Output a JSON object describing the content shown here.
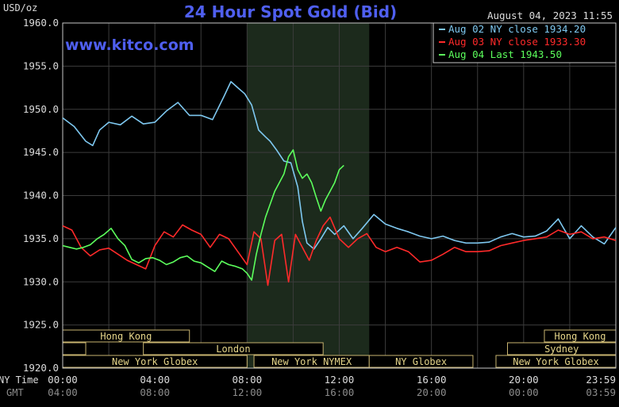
{
  "chart_data": {
    "type": "line",
    "title": "24 Hour Spot Gold (Bid)",
    "timestamp": "August 04, 2023 11:55",
    "watermark": "www.kitco.com",
    "ylabel": "USD/oz",
    "ylim": [
      1920,
      1960
    ],
    "y_ticks": [
      "1960.0",
      "1955.0",
      "1950.0",
      "1945.0",
      "1940.0",
      "1935.0",
      "1930.0",
      "1925.0",
      "1920.0"
    ],
    "x_row_labels": {
      "ny": "NY Time",
      "gmt": "GMT"
    },
    "x_ticks_ny": [
      "00:00",
      "04:00",
      "08:00",
      "12:00",
      "16:00",
      "20:00",
      "23:59"
    ],
    "x_ticks_gmt": [
      "04:00",
      "08:00",
      "12:00",
      "16:00",
      "20:00",
      "00:00",
      "03:59"
    ],
    "highlight_hours": [
      8,
      13.3
    ],
    "sessions": [
      {
        "label": "Hong Kong",
        "row": 0,
        "start": 0,
        "end": 5.5
      },
      {
        "label": "Hong Kong",
        "row": 0,
        "start": 20.9,
        "end": 24
      },
      {
        "label": "",
        "row": 1,
        "start": 0,
        "end": 1
      },
      {
        "label": "London",
        "row": 1,
        "start": 3.5,
        "end": 11.3
      },
      {
        "label": "Sydney",
        "row": 1,
        "start": 19.3,
        "end": 24
      },
      {
        "label": "New York Globex",
        "row": 2,
        "start": 0,
        "end": 8
      },
      {
        "label": "New York NYMEX",
        "row": 2,
        "start": 8.3,
        "end": 13.3
      },
      {
        "label": "NY Globex",
        "row": 2,
        "start": 13.3,
        "end": 17.8
      },
      {
        "label": "New York Globex",
        "row": 2,
        "start": 18.8,
        "end": 24
      }
    ],
    "series": [
      {
        "name": "Aug 02 NY close 1934.20",
        "color": "#7ec8f0",
        "x": [
          0,
          0.5,
          1,
          1.3,
          1.6,
          2,
          2.5,
          3,
          3.5,
          4,
          4.5,
          5,
          5.5,
          6,
          6.5,
          7,
          7.3,
          7.6,
          7.9,
          8.2,
          8.5,
          8.8,
          9,
          9.3,
          9.6,
          9.9,
          10.2,
          10.4,
          10.6,
          10.9,
          11.2,
          11.5,
          11.8,
          12.2,
          12.6,
          13,
          13.5,
          14,
          14.5,
          15,
          15.5,
          16,
          16.5,
          17,
          17.5,
          18,
          18.5,
          19,
          19.5,
          20,
          20.5,
          21,
          21.5,
          22,
          22.5,
          23,
          23.5,
          24
        ],
        "values": [
          1949.0,
          1948.0,
          1946.3,
          1945.8,
          1947.6,
          1948.5,
          1948.2,
          1949.2,
          1948.3,
          1948.5,
          1949.8,
          1950.8,
          1949.3,
          1949.3,
          1948.8,
          1951.5,
          1953.2,
          1952.5,
          1951.8,
          1950.5,
          1947.6,
          1946.8,
          1946.3,
          1945.2,
          1944.0,
          1943.8,
          1941.0,
          1937.0,
          1934.5,
          1933.8,
          1935.0,
          1936.3,
          1935.5,
          1936.5,
          1935.0,
          1936.2,
          1937.8,
          1936.7,
          1936.2,
          1935.8,
          1935.3,
          1935.0,
          1935.3,
          1934.8,
          1934.5,
          1934.5,
          1934.6,
          1935.2,
          1935.6,
          1935.2,
          1935.3,
          1935.9,
          1937.3,
          1935.0,
          1936.5,
          1935.2,
          1934.4,
          1936.3
        ]
      },
      {
        "name": "Aug 03 NY close 1933.30",
        "color": "#ff2a2a",
        "x": [
          0,
          0.4,
          0.8,
          1.2,
          1.6,
          2,
          2.4,
          2.8,
          3.2,
          3.6,
          4,
          4.4,
          4.8,
          5.2,
          5.6,
          6,
          6.4,
          6.8,
          7.2,
          7.6,
          8,
          8.3,
          8.6,
          8.9,
          9.2,
          9.5,
          9.8,
          10.1,
          10.4,
          10.7,
          11,
          11.3,
          11.6,
          12,
          12.4,
          12.8,
          13.2,
          13.6,
          14,
          14.5,
          15,
          15.5,
          16,
          16.5,
          17,
          17.5,
          18,
          18.5,
          19,
          19.5,
          20,
          20.5,
          21,
          21.5,
          22,
          22.5,
          23,
          23.5,
          24
        ],
        "values": [
          1936.5,
          1936.0,
          1934.0,
          1933.0,
          1933.7,
          1933.9,
          1933.2,
          1932.5,
          1932.0,
          1931.5,
          1934.2,
          1935.8,
          1935.2,
          1936.6,
          1936.0,
          1935.5,
          1934.0,
          1935.5,
          1935.0,
          1933.5,
          1932.0,
          1935.8,
          1935.0,
          1929.6,
          1934.8,
          1935.5,
          1930.0,
          1935.5,
          1934.0,
          1932.5,
          1934.8,
          1936.5,
          1937.5,
          1935.0,
          1934.0,
          1935.0,
          1935.6,
          1934.0,
          1933.5,
          1934.0,
          1933.5,
          1932.3,
          1932.5,
          1933.2,
          1934.0,
          1933.5,
          1933.5,
          1933.6,
          1934.2,
          1934.5,
          1934.8,
          1935.0,
          1935.2,
          1936.0,
          1935.5,
          1935.8,
          1935.0,
          1935.2,
          1934.8
        ]
      },
      {
        "name": "Aug 04 Last 1943.50",
        "color": "#5cff5c",
        "x": [
          0,
          0.3,
          0.6,
          0.9,
          1.2,
          1.5,
          1.8,
          2.1,
          2.4,
          2.7,
          3,
          3.3,
          3.6,
          3.9,
          4.2,
          4.5,
          4.8,
          5.1,
          5.4,
          5.7,
          6,
          6.3,
          6.6,
          6.9,
          7.2,
          7.5,
          7.8,
          8,
          8.2,
          8.4,
          8.6,
          8.8,
          9,
          9.2,
          9.4,
          9.6,
          9.8,
          10,
          10.2,
          10.4,
          10.6,
          10.8,
          11,
          11.2,
          11.4,
          11.6,
          11.8,
          12,
          12.2
        ],
        "values": [
          1934.2,
          1934.0,
          1933.8,
          1934.0,
          1934.3,
          1935.0,
          1935.5,
          1936.2,
          1935.0,
          1934.2,
          1932.6,
          1932.2,
          1932.7,
          1932.8,
          1932.5,
          1932.0,
          1932.3,
          1932.8,
          1933.0,
          1932.4,
          1932.2,
          1931.7,
          1931.2,
          1932.4,
          1932.0,
          1931.8,
          1931.5,
          1931.0,
          1930.2,
          1933.2,
          1935.5,
          1937.5,
          1939.0,
          1940.5,
          1941.5,
          1942.5,
          1944.5,
          1945.3,
          1943.0,
          1942.0,
          1942.5,
          1941.5,
          1939.8,
          1938.2,
          1939.5,
          1940.5,
          1941.5,
          1943.0,
          1943.5
        ]
      }
    ]
  }
}
